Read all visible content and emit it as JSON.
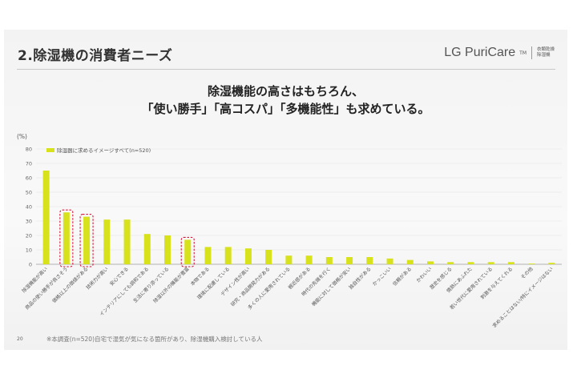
{
  "slide": {
    "title": "2.除湿機の消費者ニーズ",
    "brand": {
      "name": "LG PuriCare",
      "tm": "TM",
      "sub": "衣類乾燥除湿機"
    },
    "headline_line1": "除湿機能の高さはもちろん、",
    "headline_line2": "「使い勝手」「高コスパ」「多機能性」も求めている。",
    "footnote": "※本調査(n=520)自宅で湿気が気になる箇所があり、除湿機購入検討している人",
    "page_number": "20"
  },
  "colors": {
    "bar": "#d7e21c",
    "highlight": "#d8193a",
    "grid": "#e2e2e2",
    "axis": "#9a9a9a"
  },
  "chart_data": {
    "type": "bar",
    "title": "",
    "ylabel": "(%)",
    "xlabel": "",
    "ylim": [
      0,
      80
    ],
    "yticks": [
      0,
      10,
      20,
      30,
      40,
      50,
      60,
      70,
      80
    ],
    "legend": "除湿器に求めるイメージすべて(n=520)",
    "categories": [
      "除湿機能が高い",
      "商品の使い勝手が良さそう",
      "価格以上の価値がある",
      "技術力が高い",
      "安心できる",
      "インテリアにしても調和である",
      "生活に寄り添っている",
      "除湿以外の機能が豊富",
      "本物である",
      "環境に配慮している",
      "デザイン性が高い",
      "研究・商品開発力がある",
      "多くの人に愛用されている",
      "親近感がある",
      "時代の先端を行く",
      "機能に対して価格が安い",
      "独自性がある",
      "かっこいい",
      "信頼がある",
      "かわいい",
      "歴史を感じる",
      "情熱にあふれた",
      "若い世代に愛用されている",
      "刺激を与えてくれる",
      "その他",
      "求めることはない/特にイメージはない"
    ],
    "values": [
      65,
      36,
      33,
      31,
      31,
      21,
      20,
      17,
      12,
      12,
      11,
      10,
      6,
      6,
      5,
      5,
      5,
      4,
      3,
      2,
      1.5,
      1.5,
      1.5,
      1.5,
      0.5,
      1
    ],
    "highlighted": [
      1,
      2,
      7
    ]
  }
}
